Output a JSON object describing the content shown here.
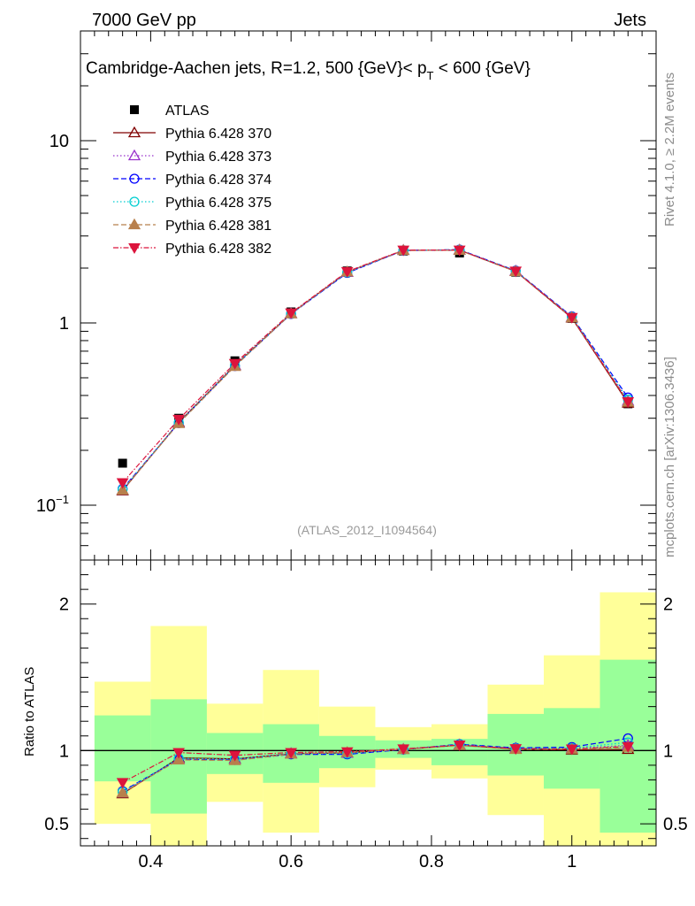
{
  "header": {
    "left": "7000 GeV pp",
    "right": "Jets"
  },
  "side": {
    "rivet": "Rivet 4.1.0, ≥ 2.2M events",
    "mcplots": "mcplots.cern.ch [arXiv:1306.3436]"
  },
  "chart_data": {
    "type": "line",
    "title": "Cambridge-Aachen jets, R=1.2,  500 {GeV}< p_T < 600 {GeV}",
    "title_main": "Cambridge-Aachen jets, R=1.2,  500 {GeV}< p",
    "title_sub": "T",
    "title_tail": " < 600 {GeV}",
    "analysis": "(ATLAS_2012_I1094564)",
    "xlim": [
      0.3,
      1.12
    ],
    "ylim": [
      0.05,
      40
    ],
    "yscale": "log",
    "ratio_ylim": [
      0.35,
      2.3
    ],
    "ratio_ylabel": "Ratio to ATLAS",
    "x": [
      0.36,
      0.44,
      0.52,
      0.6,
      0.68,
      0.76,
      0.84,
      0.92,
      1.0,
      1.08
    ],
    "x_edges": [
      0.32,
      0.4,
      0.48,
      0.56,
      0.64,
      0.72,
      0.8,
      0.88,
      0.96,
      1.04,
      1.12
    ],
    "x_ticks": [
      {
        "v": 0.4,
        "label": "0.4"
      },
      {
        "v": 0.6,
        "label": "0.6"
      },
      {
        "v": 0.8,
        "label": "0.8"
      },
      {
        "v": 1.0,
        "label": "1"
      }
    ],
    "y_ticks": [
      {
        "v": 0.1,
        "label": "10",
        "sup": "−1"
      },
      {
        "v": 1,
        "label": "1",
        "sup": ""
      },
      {
        "v": 10,
        "label": "10",
        "sup": ""
      }
    ],
    "ratio_ticks": [
      {
        "v": 0.5,
        "label": "0.5"
      },
      {
        "v": 1,
        "label": "1"
      },
      {
        "v": 2,
        "label": "2"
      }
    ],
    "data": {
      "name": "ATLAS",
      "values": [
        0.17,
        0.3,
        0.62,
        1.15,
        1.93,
        2.48,
        2.42,
        1.9,
        1.06,
        0.36
      ]
    },
    "band_inner": [
      [
        0.79,
        1.24
      ],
      [
        0.57,
        1.35
      ],
      [
        0.84,
        1.12
      ],
      [
        0.78,
        1.18
      ],
      [
        0.88,
        1.1
      ],
      [
        0.95,
        1.07
      ],
      [
        0.9,
        1.08
      ],
      [
        0.83,
        1.25
      ],
      [
        0.74,
        1.29
      ],
      [
        0.44,
        1.62
      ]
    ],
    "band_outer": [
      [
        0.5,
        1.47
      ],
      [
        0.35,
        1.85
      ],
      [
        0.65,
        1.32
      ],
      [
        0.44,
        1.55
      ],
      [
        0.75,
        1.3
      ],
      [
        0.87,
        1.16
      ],
      [
        0.81,
        1.18
      ],
      [
        0.56,
        1.45
      ],
      [
        0.35,
        1.65
      ],
      [
        0.35,
        2.08
      ]
    ],
    "series": [
      {
        "name": "Pythia 6.428 370",
        "color": "#800000",
        "dash": "",
        "marker": "tri-open",
        "values": [
          0.12,
          0.285,
          0.585,
          1.125,
          1.9,
          2.5,
          2.51,
          1.92,
          1.065,
          0.363
        ]
      },
      {
        "name": "Pythia 6.428 373",
        "color": "#9932CC",
        "dash": "1.5 2.5",
        "marker": "tri-open",
        "values": [
          0.121,
          0.283,
          0.583,
          1.128,
          1.895,
          2.505,
          2.515,
          1.93,
          1.075,
          0.373
        ]
      },
      {
        "name": "Pythia 6.428 374",
        "color": "#0000FF",
        "dash": "6 3",
        "marker": "circle-open",
        "values": [
          0.123,
          0.282,
          0.58,
          1.12,
          1.88,
          2.498,
          2.525,
          1.935,
          1.085,
          0.39
        ]
      },
      {
        "name": "Pythia 6.428 375",
        "color": "#00CED1",
        "dash": "1.5 2.5",
        "marker": "circle-open",
        "values": [
          0.122,
          0.284,
          0.584,
          1.126,
          1.89,
          2.503,
          2.518,
          1.928,
          1.078,
          0.38
        ]
      },
      {
        "name": "Pythia 6.428 381",
        "color": "#B8804C",
        "dash": "6 3",
        "marker": "tri-filled",
        "values": [
          0.121,
          0.281,
          0.578,
          1.123,
          1.905,
          2.5,
          2.505,
          1.915,
          1.07,
          0.368
        ]
      },
      {
        "name": "Pythia 6.428 382",
        "color": "#DC143C",
        "dash": "6 2 1.5 2",
        "marker": "tri-down-filled",
        "values": [
          0.133,
          0.296,
          0.6,
          1.135,
          1.915,
          2.51,
          2.512,
          1.925,
          1.072,
          0.37
        ]
      }
    ]
  }
}
